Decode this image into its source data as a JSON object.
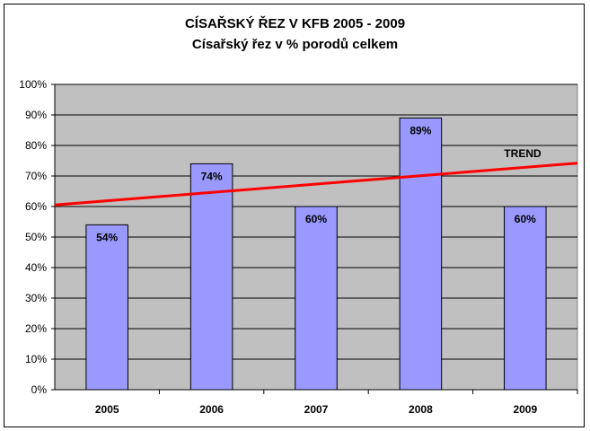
{
  "chart_data": {
    "type": "bar",
    "title": "CÍSAŘSKÝ ŘEZ V KFB 2005  - 2009",
    "subtitle": "Císařský řez v % porodů celkem",
    "categories": [
      "2005",
      "2006",
      "2007",
      "2008",
      "2009"
    ],
    "values": [
      54,
      74,
      60,
      89,
      60
    ],
    "data_labels": [
      "54%",
      "74%",
      "60%",
      "89%",
      "60%"
    ],
    "y_ticks": [
      "0%",
      "10%",
      "20%",
      "30%",
      "40%",
      "50%",
      "60%",
      "70%",
      "80%",
      "90%",
      "100%"
    ],
    "ylim": [
      0,
      100
    ],
    "grid": true,
    "trendline": {
      "label": "TREND",
      "type": "linear",
      "start_value": 60.5,
      "end_value": 74.2
    },
    "colors": {
      "bar": "#9999ff",
      "plot_bg": "#c0c0c0",
      "trend": "#ff0000"
    }
  }
}
